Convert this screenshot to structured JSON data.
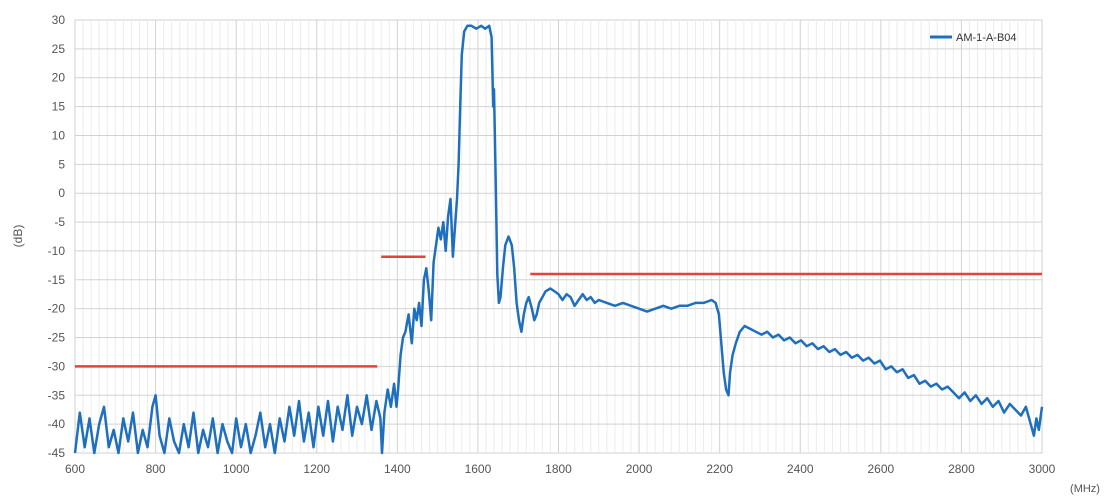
{
  "chart_data": {
    "type": "line",
    "xlabel": "(MHz)",
    "ylabel": "(dB)",
    "xlim": [
      600,
      3000
    ],
    "ylim": [
      -45,
      30
    ],
    "x_ticks": [
      600,
      800,
      1000,
      1200,
      1400,
      1600,
      1800,
      2000,
      2200,
      2400,
      2600,
      2800,
      3000
    ],
    "y_ticks": [
      30,
      25,
      20,
      15,
      10,
      5,
      0,
      -5,
      -10,
      -15,
      -20,
      -25,
      -30,
      -35,
      -40,
      -45
    ],
    "grid": true,
    "legend_position": "top-right",
    "series": [
      {
        "name": "AM-1-A-B04",
        "color": "#1f6fbf",
        "points": [
          [
            600,
            -45
          ],
          [
            612,
            -38
          ],
          [
            624,
            -44
          ],
          [
            636,
            -39
          ],
          [
            648,
            -45
          ],
          [
            660,
            -40
          ],
          [
            672,
            -37
          ],
          [
            684,
            -44
          ],
          [
            696,
            -41
          ],
          [
            708,
            -45
          ],
          [
            720,
            -39
          ],
          [
            732,
            -43
          ],
          [
            744,
            -38
          ],
          [
            756,
            -45
          ],
          [
            768,
            -41
          ],
          [
            780,
            -44
          ],
          [
            792,
            -37
          ],
          [
            800,
            -35
          ],
          [
            810,
            -42
          ],
          [
            822,
            -45
          ],
          [
            834,
            -39
          ],
          [
            846,
            -43
          ],
          [
            858,
            -45
          ],
          [
            870,
            -40
          ],
          [
            882,
            -44
          ],
          [
            894,
            -38
          ],
          [
            906,
            -45
          ],
          [
            918,
            -41
          ],
          [
            930,
            -44
          ],
          [
            942,
            -39
          ],
          [
            954,
            -45
          ],
          [
            966,
            -40
          ],
          [
            978,
            -43
          ],
          [
            990,
            -45
          ],
          [
            1000,
            -39
          ],
          [
            1012,
            -44
          ],
          [
            1024,
            -40
          ],
          [
            1036,
            -45
          ],
          [
            1048,
            -42
          ],
          [
            1060,
            -38
          ],
          [
            1072,
            -44
          ],
          [
            1084,
            -40
          ],
          [
            1096,
            -45
          ],
          [
            1108,
            -39
          ],
          [
            1120,
            -43
          ],
          [
            1132,
            -37
          ],
          [
            1144,
            -42
          ],
          [
            1156,
            -36
          ],
          [
            1168,
            -43
          ],
          [
            1180,
            -38
          ],
          [
            1192,
            -44
          ],
          [
            1204,
            -37
          ],
          [
            1216,
            -42
          ],
          [
            1228,
            -36
          ],
          [
            1240,
            -43
          ],
          [
            1252,
            -37
          ],
          [
            1264,
            -41
          ],
          [
            1276,
            -35
          ],
          [
            1288,
            -42
          ],
          [
            1300,
            -37
          ],
          [
            1312,
            -40
          ],
          [
            1324,
            -35
          ],
          [
            1336,
            -41
          ],
          [
            1348,
            -36
          ],
          [
            1358,
            -39
          ],
          [
            1362,
            -45
          ],
          [
            1368,
            -38
          ],
          [
            1376,
            -34
          ],
          [
            1384,
            -37
          ],
          [
            1392,
            -33
          ],
          [
            1398,
            -37
          ],
          [
            1402,
            -34
          ],
          [
            1408,
            -28
          ],
          [
            1414,
            -25
          ],
          [
            1420,
            -24
          ],
          [
            1428,
            -21
          ],
          [
            1436,
            -26
          ],
          [
            1442,
            -20
          ],
          [
            1448,
            -22
          ],
          [
            1454,
            -19
          ],
          [
            1460,
            -23
          ],
          [
            1466,
            -15
          ],
          [
            1472,
            -13
          ],
          [
            1478,
            -17
          ],
          [
            1484,
            -22
          ],
          [
            1490,
            -12
          ],
          [
            1496,
            -9
          ],
          [
            1502,
            -6
          ],
          [
            1508,
            -8
          ],
          [
            1514,
            -5
          ],
          [
            1520,
            -10
          ],
          [
            1526,
            -4
          ],
          [
            1532,
            -1
          ],
          [
            1538,
            -11
          ],
          [
            1542,
            -7
          ],
          [
            1548,
            -1
          ],
          [
            1552,
            5
          ],
          [
            1556,
            15
          ],
          [
            1560,
            24
          ],
          [
            1566,
            28
          ],
          [
            1574,
            29
          ],
          [
            1584,
            29
          ],
          [
            1596,
            28.5
          ],
          [
            1608,
            29
          ],
          [
            1618,
            28.5
          ],
          [
            1628,
            29
          ],
          [
            1634,
            27
          ],
          [
            1638,
            15
          ],
          [
            1640,
            18
          ],
          [
            1644,
            3
          ],
          [
            1648,
            -14
          ],
          [
            1652,
            -19
          ],
          [
            1656,
            -18
          ],
          [
            1662,
            -13
          ],
          [
            1668,
            -9
          ],
          [
            1676,
            -7.5
          ],
          [
            1684,
            -9
          ],
          [
            1690,
            -13
          ],
          [
            1696,
            -19
          ],
          [
            1702,
            -22
          ],
          [
            1708,
            -24
          ],
          [
            1714,
            -21
          ],
          [
            1720,
            -19
          ],
          [
            1726,
            -18
          ],
          [
            1734,
            -20
          ],
          [
            1740,
            -22
          ],
          [
            1746,
            -21
          ],
          [
            1752,
            -19
          ],
          [
            1760,
            -18
          ],
          [
            1768,
            -17
          ],
          [
            1780,
            -16.5
          ],
          [
            1790,
            -17
          ],
          [
            1800,
            -17.5
          ],
          [
            1810,
            -18.5
          ],
          [
            1820,
            -17.5
          ],
          [
            1830,
            -18
          ],
          [
            1840,
            -19.5
          ],
          [
            1850,
            -18.5
          ],
          [
            1860,
            -17.5
          ],
          [
            1870,
            -18.5
          ],
          [
            1880,
            -18
          ],
          [
            1890,
            -19
          ],
          [
            1900,
            -18.5
          ],
          [
            1920,
            -19
          ],
          [
            1940,
            -19.5
          ],
          [
            1960,
            -19
          ],
          [
            1980,
            -19.5
          ],
          [
            2000,
            -20
          ],
          [
            2020,
            -20.5
          ],
          [
            2040,
            -20
          ],
          [
            2060,
            -19.5
          ],
          [
            2080,
            -20
          ],
          [
            2100,
            -19.5
          ],
          [
            2120,
            -19.5
          ],
          [
            2140,
            -19
          ],
          [
            2160,
            -19
          ],
          [
            2180,
            -18.5
          ],
          [
            2190,
            -19
          ],
          [
            2198,
            -21
          ],
          [
            2204,
            -26
          ],
          [
            2210,
            -31
          ],
          [
            2216,
            -34
          ],
          [
            2222,
            -35
          ],
          [
            2226,
            -31
          ],
          [
            2232,
            -28
          ],
          [
            2240,
            -26
          ],
          [
            2250,
            -24
          ],
          [
            2262,
            -23
          ],
          [
            2276,
            -23.5
          ],
          [
            2290,
            -24
          ],
          [
            2304,
            -24.5
          ],
          [
            2318,
            -24
          ],
          [
            2332,
            -25
          ],
          [
            2346,
            -24.5
          ],
          [
            2360,
            -25.5
          ],
          [
            2374,
            -25
          ],
          [
            2388,
            -26
          ],
          [
            2402,
            -25.5
          ],
          [
            2416,
            -26.5
          ],
          [
            2430,
            -26
          ],
          [
            2444,
            -27
          ],
          [
            2458,
            -26.5
          ],
          [
            2472,
            -27.5
          ],
          [
            2486,
            -27
          ],
          [
            2500,
            -28
          ],
          [
            2514,
            -27.5
          ],
          [
            2528,
            -28.5
          ],
          [
            2542,
            -28
          ],
          [
            2556,
            -29
          ],
          [
            2570,
            -28.5
          ],
          [
            2584,
            -29.5
          ],
          [
            2598,
            -29
          ],
          [
            2612,
            -30.5
          ],
          [
            2626,
            -30
          ],
          [
            2640,
            -31
          ],
          [
            2654,
            -30.5
          ],
          [
            2668,
            -32
          ],
          [
            2682,
            -31.5
          ],
          [
            2696,
            -33
          ],
          [
            2710,
            -32.5
          ],
          [
            2724,
            -33.5
          ],
          [
            2738,
            -33
          ],
          [
            2752,
            -34
          ],
          [
            2766,
            -33.5
          ],
          [
            2780,
            -34.5
          ],
          [
            2794,
            -35.5
          ],
          [
            2808,
            -34.5
          ],
          [
            2822,
            -36
          ],
          [
            2836,
            -35
          ],
          [
            2850,
            -36.5
          ],
          [
            2864,
            -35.5
          ],
          [
            2878,
            -37
          ],
          [
            2892,
            -36
          ],
          [
            2906,
            -38
          ],
          [
            2920,
            -36.5
          ],
          [
            2934,
            -37.5
          ],
          [
            2948,
            -38.5
          ],
          [
            2960,
            -37
          ],
          [
            2972,
            -40
          ],
          [
            2980,
            -42
          ],
          [
            2986,
            -39
          ],
          [
            2992,
            -41
          ],
          [
            3000,
            -37
          ]
        ]
      }
    ],
    "limit_lines": [
      {
        "color": "#e8413a",
        "x1": 600,
        "x2": 1350,
        "y": -30
      },
      {
        "color": "#e8413a",
        "x1": 1360,
        "x2": 1470,
        "y": -11
      },
      {
        "color": "#e8413a",
        "x1": 1730,
        "x2": 3000,
        "y": -14
      }
    ]
  }
}
